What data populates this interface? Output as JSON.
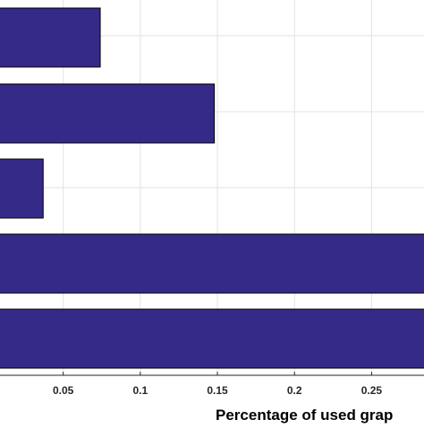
{
  "chart_data": {
    "type": "bar",
    "orientation": "horizontal",
    "grid": true,
    "xlabel": "Percentage of  used grap",
    "xticks": [
      {
        "value": 0.05,
        "label": "0.05"
      },
      {
        "value": 0.1,
        "label": "0.1"
      },
      {
        "value": 0.15,
        "label": "0.15"
      },
      {
        "value": 0.2,
        "label": "0.2"
      },
      {
        "value": 0.25,
        "label": "0.25"
      }
    ],
    "xlim": [
      0.009,
      0.284
    ],
    "values": [
      0.074,
      0.148,
      0.037,
      0.3,
      0.3
    ],
    "bar_color": "#352a87",
    "edge_color": "#000000"
  }
}
